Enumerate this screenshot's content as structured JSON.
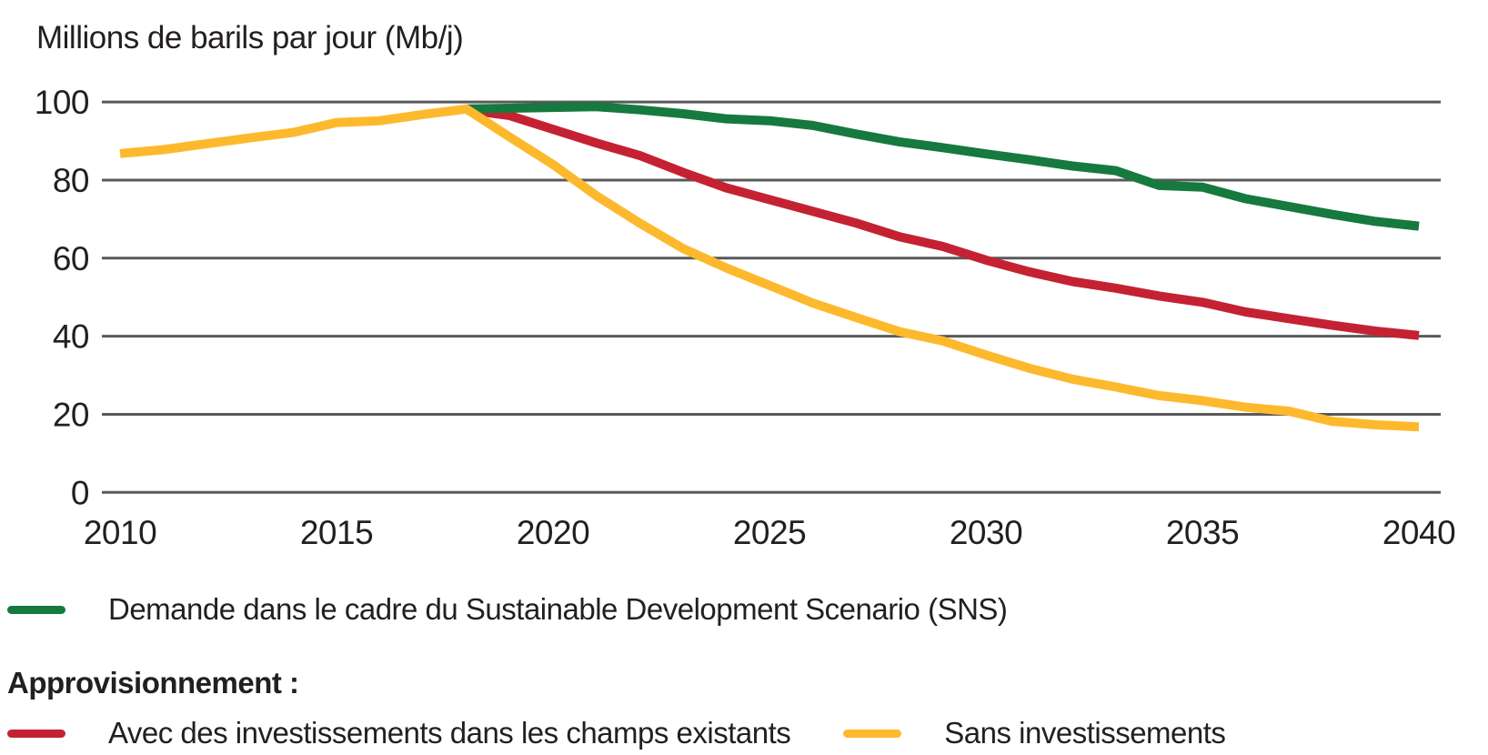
{
  "title": "Millions de barils par jour (Mb/j)",
  "colors": {
    "green": "#16793E",
    "red": "#C42233",
    "yellow": "#FDB92D",
    "grid": "#58595B",
    "text": "#231F20"
  },
  "chart_data": {
    "type": "line",
    "title": "Millions de barils par jour (Mb/j)",
    "xlabel": "",
    "ylabel": "Millions de barils par jour (Mb/j)",
    "xlim": [
      2010,
      2040
    ],
    "ylim": [
      0,
      100
    ],
    "y_ticks": [
      0,
      20,
      40,
      60,
      80,
      100
    ],
    "x_ticks": [
      2010,
      2015,
      2020,
      2025,
      2030,
      2035,
      2040
    ],
    "grid": "horizontal",
    "legend_position": "bottom",
    "series": [
      {
        "key": "with_investment",
        "name": "Avec des investissements dans les champs existants",
        "color": "#C42233",
        "x": [
          2018,
          2019,
          2020,
          2021,
          2022,
          2023,
          2024,
          2025,
          2026,
          2027,
          2028,
          2029,
          2030,
          2031,
          2032,
          2033,
          2034,
          2035,
          2036,
          2037,
          2038,
          2039,
          2040
        ],
        "values": [
          98.0,
          96.5,
          93.0,
          89.5,
          86.3,
          82.0,
          78.0,
          75.0,
          72.0,
          69.0,
          65.5,
          63.0,
          59.5,
          56.5,
          54.0,
          52.3,
          50.3,
          48.7,
          46.2,
          44.5,
          42.8,
          41.3,
          40.2
        ]
      },
      {
        "key": "sds_demand",
        "name": "Demande dans le cadre du Sustainable Development Scenario (SNS)",
        "color": "#16793E",
        "x": [
          2018,
          2019,
          2020,
          2021,
          2022,
          2023,
          2024,
          2025,
          2026,
          2027,
          2028,
          2029,
          2030,
          2031,
          2032,
          2033,
          2034,
          2035,
          2036,
          2037,
          2038,
          2039,
          2040
        ],
        "values": [
          98.2,
          98.4,
          98.6,
          98.8,
          98.0,
          97.0,
          95.7,
          95.2,
          94.0,
          91.8,
          89.8,
          88.3,
          86.7,
          85.2,
          83.6,
          82.4,
          78.6,
          78.2,
          75.2,
          73.2,
          71.2,
          69.4,
          68.2
        ]
      },
      {
        "key": "without_investment",
        "name": "Sans investissements",
        "color": "#FDB92D",
        "x": [
          2010,
          2011,
          2012,
          2013,
          2014,
          2015,
          2016,
          2017,
          2018,
          2019,
          2020,
          2021,
          2022,
          2023,
          2024,
          2025,
          2026,
          2027,
          2028,
          2029,
          2030,
          2031,
          2032,
          2033,
          2034,
          2035,
          2036,
          2037,
          2038,
          2039,
          2040
        ],
        "values": [
          86.8,
          87.8,
          89.3,
          90.8,
          92.2,
          94.7,
          95.2,
          96.8,
          98.2,
          91.0,
          84.0,
          76.0,
          69.0,
          62.5,
          57.5,
          53.0,
          48.5,
          44.8,
          41.2,
          38.8,
          35.2,
          31.8,
          29.0,
          27.0,
          24.8,
          23.5,
          21.8,
          20.8,
          18.2,
          17.3,
          16.8
        ]
      }
    ]
  },
  "legend": {
    "demand_label": "Demande dans le cadre du Sustainable Development Scenario (SNS)",
    "supply_heading": "Approvisionnement :",
    "with_investment_label": "Avec des investissements dans les champs existants",
    "without_investment_label": "Sans investissements"
  }
}
